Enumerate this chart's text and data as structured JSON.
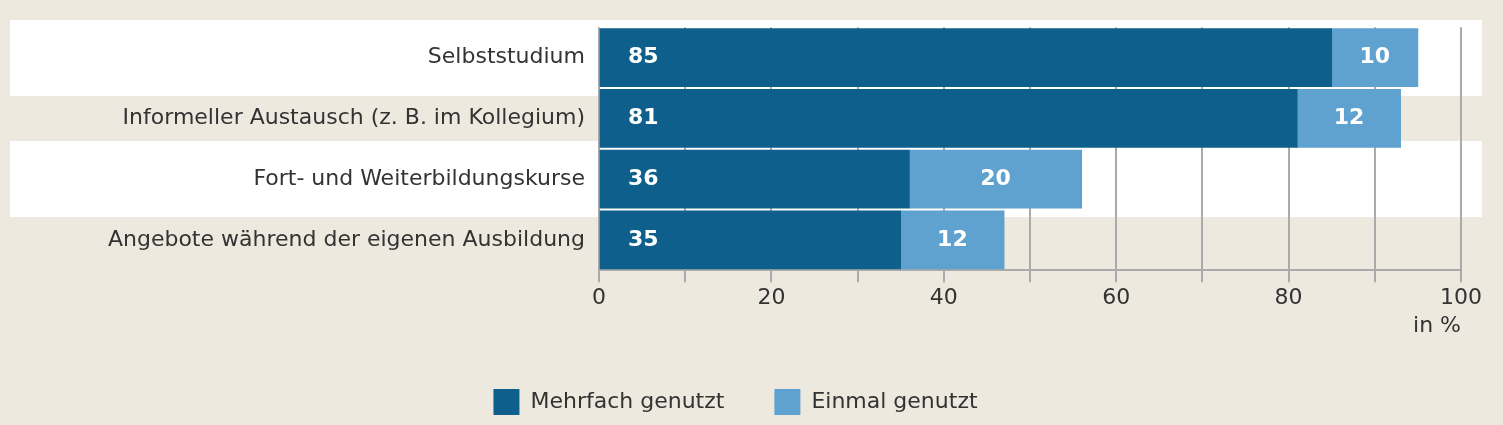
{
  "chart_data": {
    "type": "bar",
    "orientation": "horizontal",
    "stacked": true,
    "categories": [
      "Selbststudium",
      "Informeller Austausch (z. B. im Kollegium)",
      "Fort- und Weiterbildungskurse",
      "Angebote während der eigenen Ausbildung"
    ],
    "series": [
      {
        "name": "Mehrfach genutzt",
        "color": "#0e5f8b",
        "values": [
          85,
          81,
          36,
          35
        ]
      },
      {
        "name": "Einmal genutzt",
        "color": "#5fa2cf",
        "values": [
          10,
          12,
          20,
          12
        ]
      }
    ],
    "xlim": [
      0,
      100
    ],
    "xticks": [
      0,
      {
        "value": 10,
        "label": null
      },
      20,
      {
        "value": 30,
        "label": null
      },
      40,
      {
        "value": 50,
        "label": null
      },
      60,
      {
        "value": 70,
        "label": null
      },
      80,
      {
        "value": 90,
        "label": null
      },
      100
    ],
    "xlabel": "in %",
    "grid": "x",
    "legend": "bottom",
    "data_labels": true
  }
}
